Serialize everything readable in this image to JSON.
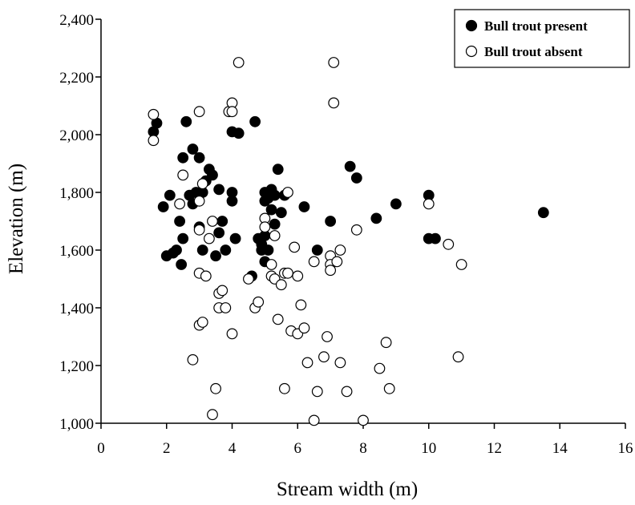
{
  "chart_data": {
    "type": "scatter",
    "title": "",
    "xlabel": "Stream width (m)",
    "ylabel": "Elevation (m)",
    "xlim": [
      0,
      16
    ],
    "ylim": [
      1000,
      2400
    ],
    "xticks": [
      0,
      2,
      4,
      6,
      8,
      10,
      12,
      14,
      16
    ],
    "yticks": [
      1000,
      1200,
      1400,
      1600,
      1800,
      2000,
      2200,
      2400
    ],
    "xtick_labels": [
      "0",
      "2",
      "4",
      "6",
      "8",
      "10",
      "12",
      "14",
      "16"
    ],
    "ytick_labels": [
      "1,000",
      "1,200",
      "1,400",
      "1,600",
      "1,800",
      "2,000",
      "2,200",
      "2,400"
    ],
    "grid": false,
    "legend_position": "top-right",
    "series": [
      {
        "name": "Bull trout present",
        "marker": "filled-circle",
        "color": "#000000",
        "points": [
          [
            1.6,
            2010
          ],
          [
            1.7,
            2040
          ],
          [
            1.9,
            1750
          ],
          [
            2.0,
            1580
          ],
          [
            2.1,
            1790
          ],
          [
            2.2,
            1590
          ],
          [
            2.3,
            1600
          ],
          [
            2.4,
            1700
          ],
          [
            2.45,
            1550
          ],
          [
            2.5,
            1920
          ],
          [
            2.5,
            1640
          ],
          [
            2.6,
            2045
          ],
          [
            2.7,
            1790
          ],
          [
            2.8,
            1950
          ],
          [
            2.8,
            1760
          ],
          [
            2.9,
            1800
          ],
          [
            3.0,
            1920
          ],
          [
            3.0,
            1680
          ],
          [
            3.1,
            1800
          ],
          [
            3.1,
            1600
          ],
          [
            3.2,
            1840
          ],
          [
            3.3,
            1880
          ],
          [
            3.4,
            1860
          ],
          [
            3.5,
            1580
          ],
          [
            3.6,
            1810
          ],
          [
            3.6,
            1660
          ],
          [
            3.7,
            1700
          ],
          [
            3.8,
            1600
          ],
          [
            4.0,
            2010
          ],
          [
            4.0,
            1800
          ],
          [
            4.0,
            1770
          ],
          [
            4.1,
            1640
          ],
          [
            4.2,
            2005
          ],
          [
            4.6,
            1510
          ],
          [
            4.7,
            2045
          ],
          [
            4.8,
            1640
          ],
          [
            4.9,
            1620
          ],
          [
            4.9,
            1600
          ],
          [
            5.0,
            1800
          ],
          [
            5.0,
            1770
          ],
          [
            5.0,
            1650
          ],
          [
            5.0,
            1560
          ],
          [
            5.1,
            1780
          ],
          [
            5.1,
            1600
          ],
          [
            5.2,
            1810
          ],
          [
            5.2,
            1740
          ],
          [
            5.3,
            1690
          ],
          [
            5.3,
            1790
          ],
          [
            5.4,
            1880
          ],
          [
            5.5,
            1730
          ],
          [
            5.6,
            1790
          ],
          [
            6.2,
            1750
          ],
          [
            6.6,
            1600
          ],
          [
            7.0,
            1700
          ],
          [
            7.6,
            1890
          ],
          [
            7.8,
            1850
          ],
          [
            8.4,
            1710
          ],
          [
            9.0,
            1760
          ],
          [
            10.0,
            1790
          ],
          [
            10.0,
            1640
          ],
          [
            10.2,
            1640
          ],
          [
            13.5,
            1730
          ]
        ]
      },
      {
        "name": "Bull trout absent",
        "marker": "open-circle",
        "color": "#000000",
        "points": [
          [
            1.6,
            2070
          ],
          [
            1.6,
            1980
          ],
          [
            2.4,
            1760
          ],
          [
            2.5,
            1860
          ],
          [
            2.8,
            1220
          ],
          [
            3.0,
            1340
          ],
          [
            3.0,
            1520
          ],
          [
            3.0,
            1670
          ],
          [
            3.1,
            1350
          ],
          [
            3.2,
            1510
          ],
          [
            3.3,
            1640
          ],
          [
            3.4,
            1030
          ],
          [
            3.4,
            1700
          ],
          [
            3.5,
            1120
          ],
          [
            3.6,
            1400
          ],
          [
            3.6,
            1450
          ],
          [
            3.7,
            1460
          ],
          [
            3.8,
            1400
          ],
          [
            3.0,
            2080
          ],
          [
            3.0,
            1770
          ],
          [
            3.1,
            1830
          ],
          [
            3.9,
            2080
          ],
          [
            4.0,
            2110
          ],
          [
            4.0,
            2080
          ],
          [
            4.0,
            1310
          ],
          [
            4.2,
            2250
          ],
          [
            4.5,
            1500
          ],
          [
            4.7,
            1400
          ],
          [
            4.8,
            1420
          ],
          [
            5.0,
            1710
          ],
          [
            5.0,
            1680
          ],
          [
            5.2,
            1510
          ],
          [
            5.2,
            1550
          ],
          [
            5.3,
            1650
          ],
          [
            5.3,
            1500
          ],
          [
            5.4,
            1360
          ],
          [
            5.5,
            1480
          ],
          [
            5.6,
            1120
          ],
          [
            5.6,
            1520
          ],
          [
            5.7,
            1800
          ],
          [
            5.7,
            1520
          ],
          [
            5.8,
            1320
          ],
          [
            5.9,
            1610
          ],
          [
            6.0,
            1510
          ],
          [
            6.0,
            1310
          ],
          [
            6.1,
            1410
          ],
          [
            6.2,
            1330
          ],
          [
            6.3,
            1210
          ],
          [
            6.5,
            1010
          ],
          [
            6.5,
            1560
          ],
          [
            6.6,
            1110
          ],
          [
            6.8,
            1230
          ],
          [
            6.9,
            1300
          ],
          [
            7.0,
            1580
          ],
          [
            7.0,
            1550
          ],
          [
            7.0,
            1530
          ],
          [
            7.1,
            2250
          ],
          [
            7.1,
            2110
          ],
          [
            7.2,
            1560
          ],
          [
            7.3,
            1600
          ],
          [
            7.3,
            1210
          ],
          [
            7.5,
            1110
          ],
          [
            7.8,
            1670
          ],
          [
            8.0,
            1010
          ],
          [
            8.5,
            1190
          ],
          [
            8.7,
            1280
          ],
          [
            8.8,
            1120
          ],
          [
            10.0,
            1760
          ],
          [
            10.6,
            1620
          ],
          [
            10.9,
            1230
          ],
          [
            11.0,
            1550
          ]
        ]
      }
    ]
  }
}
